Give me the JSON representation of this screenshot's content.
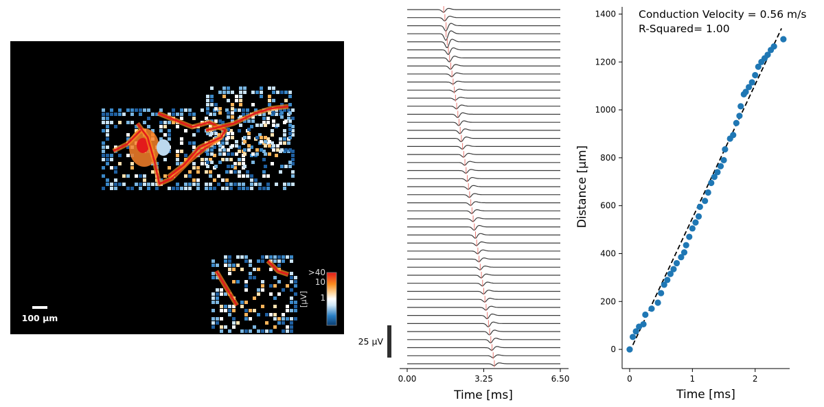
{
  "colors": {
    "map_background": "#000000",
    "trace": "#3a3a3a",
    "latency_marker": "#e8766f",
    "scatter_point": "#1f77b4",
    "fit_line": "#000000",
    "scale_bar": "#ffffff",
    "colorbar_low": "#1a5e9c",
    "colorbar_mid": "#ffffff",
    "colorbar_high": "#e31a1c"
  },
  "amplitude_map": {
    "scale_bar_label": "100 µm",
    "colorbar_ticks": [
      ">40",
      "10",
      "1"
    ],
    "colorbar_label": "[µV]"
  },
  "chart_data": [
    {
      "type": "line",
      "xlabel": "Time [ms]",
      "ylabel": "",
      "xlim": [
        0,
        6.5
      ],
      "x_ticks": [
        "0.00",
        "3.25",
        "6.50"
      ],
      "trace_count": 45,
      "scale_bar_label": "25 µV",
      "scale_bar_value_uV": 25,
      "spike_latency_ms": [
        1.55,
        1.6,
        1.65,
        1.65,
        1.7,
        1.75,
        1.8,
        1.85,
        1.9,
        1.95,
        2.0,
        2.05,
        2.1,
        2.15,
        2.2,
        2.25,
        2.3,
        2.35,
        2.4,
        2.45,
        2.5,
        2.55,
        2.6,
        2.65,
        2.7,
        2.75,
        2.8,
        2.85,
        2.9,
        2.95,
        3.0,
        3.05,
        3.1,
        3.15,
        3.2,
        3.25,
        3.3,
        3.35,
        3.4,
        3.45,
        3.5,
        3.55,
        3.6,
        3.65,
        3.7
      ],
      "spike_amplitude_uV": [
        4,
        5,
        8,
        10,
        9,
        7,
        6,
        5,
        4,
        3,
        3,
        3,
        4,
        5,
        5,
        5,
        5,
        4,
        4,
        4,
        4,
        4,
        4,
        4,
        4,
        4,
        4,
        5,
        5,
        4,
        4,
        4,
        4,
        4,
        4,
        4,
        4,
        4,
        5,
        5,
        5,
        5,
        4,
        3,
        3
      ]
    },
    {
      "type": "scatter",
      "title": "Conduction Velocity = 0.56 m/s",
      "subtitle": "R-Squared= 1.00",
      "xlabel": "Time [ms]",
      "ylabel": "Distance [µm]",
      "xlim": [
        -0.12,
        2.55
      ],
      "ylim": [
        -80,
        1430
      ],
      "x_ticks": [
        0,
        1,
        2
      ],
      "y_ticks": [
        0,
        200,
        400,
        600,
        800,
        1000,
        1200,
        1400
      ],
      "points": [
        [
          0,
          0
        ],
        [
          0.05,
          52
        ],
        [
          0.1,
          75
        ],
        [
          0.15,
          95
        ],
        [
          0.22,
          105
        ],
        [
          0.25,
          145
        ],
        [
          0.35,
          170
        ],
        [
          0.45,
          195
        ],
        [
          0.5,
          235
        ],
        [
          0.55,
          270
        ],
        [
          0.6,
          290
        ],
        [
          0.65,
          315
        ],
        [
          0.7,
          335
        ],
        [
          0.75,
          360
        ],
        [
          0.82,
          385
        ],
        [
          0.87,
          405
        ],
        [
          0.9,
          435
        ],
        [
          0.95,
          470
        ],
        [
          1.0,
          505
        ],
        [
          1.05,
          530
        ],
        [
          1.1,
          555
        ],
        [
          1.12,
          595
        ],
        [
          1.2,
          620
        ],
        [
          1.25,
          655
        ],
        [
          1.3,
          695
        ],
        [
          1.35,
          720
        ],
        [
          1.4,
          740
        ],
        [
          1.45,
          765
        ],
        [
          1.5,
          790
        ],
        [
          1.52,
          835
        ],
        [
          1.6,
          880
        ],
        [
          1.65,
          895
        ],
        [
          1.7,
          945
        ],
        [
          1.75,
          975
        ],
        [
          1.77,
          1015
        ],
        [
          1.82,
          1065
        ],
        [
          1.85,
          1075
        ],
        [
          1.9,
          1095
        ],
        [
          1.95,
          1115
        ],
        [
          2.0,
          1145
        ],
        [
          2.05,
          1180
        ],
        [
          2.1,
          1200
        ],
        [
          2.15,
          1215
        ],
        [
          2.2,
          1230
        ],
        [
          2.25,
          1250
        ],
        [
          2.3,
          1265
        ],
        [
          2.45,
          1295
        ]
      ],
      "fit_line": [
        [
          0,
          -10
        ],
        [
          2.42,
          1340
        ]
      ]
    }
  ]
}
